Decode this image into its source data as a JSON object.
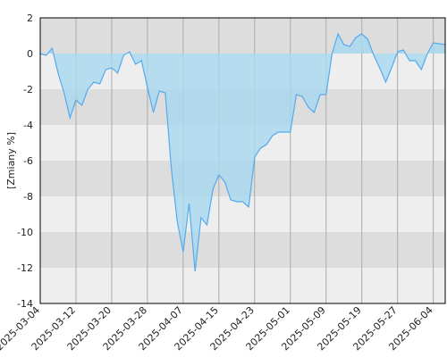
{
  "chart_data": {
    "type": "area",
    "y_label": "[Zmiany %]",
    "categories": [
      "2025-03-04",
      null,
      null,
      null,
      null,
      null,
      "2025-03-12",
      null,
      null,
      null,
      null,
      null,
      "2025-03-20",
      null,
      null,
      null,
      null,
      null,
      "2025-03-28",
      null,
      null,
      null,
      null,
      null,
      "2025-04-07",
      null,
      null,
      null,
      null,
      null,
      "2025-04-15",
      null,
      null,
      null,
      null,
      null,
      "2025-04-23",
      null,
      null,
      null,
      null,
      null,
      "2025-05-01",
      null,
      null,
      null,
      null,
      null,
      "2025-05-09",
      null,
      null,
      null,
      null,
      null,
      "2025-05-19",
      null,
      null,
      null,
      null,
      null,
      "2025-05-27",
      null,
      null,
      null,
      null,
      null,
      "2025-06-04",
      null,
      null
    ],
    "series": [
      {
        "color": "#55aaee",
        "fill": "#a8d8ef",
        "values": [
          0,
          -0.1,
          0.3,
          -1.1,
          -2.2,
          -3.6,
          -2.6,
          -2.9,
          -2.0,
          -1.6,
          -1.7,
          -0.9,
          -0.8,
          -1.1,
          -0.1,
          0.1,
          -0.6,
          -0.4,
          -1.9,
          -3.3,
          -2.1,
          -2.2,
          -6.4,
          -9.4,
          -11.1,
          -8.4,
          -12.2,
          -9.2,
          -9.6,
          -7.6,
          -6.8,
          -7.2,
          -8.2,
          -8.3,
          -8.3,
          -8.6,
          -5.8,
          -5.3,
          -5.1,
          -4.6,
          -4.4,
          -4.4,
          -4.4,
          -2.3,
          -2.4,
          -3.0,
          -3.3,
          -2.3,
          -2.3,
          0.0,
          1.1,
          0.5,
          0.4,
          0.9,
          1.1,
          0.8,
          -0.1,
          -0.8,
          -1.6,
          -0.8,
          0.1,
          0.2,
          -0.4,
          -0.4,
          -0.9,
          0.0,
          0.6,
          0.55,
          0.5
        ]
      }
    ],
    "ylim": [
      -14,
      2
    ],
    "yticks": [
      2,
      0,
      -2,
      -4,
      -6,
      -8,
      -10,
      -12,
      -14
    ],
    "grid": true
  }
}
